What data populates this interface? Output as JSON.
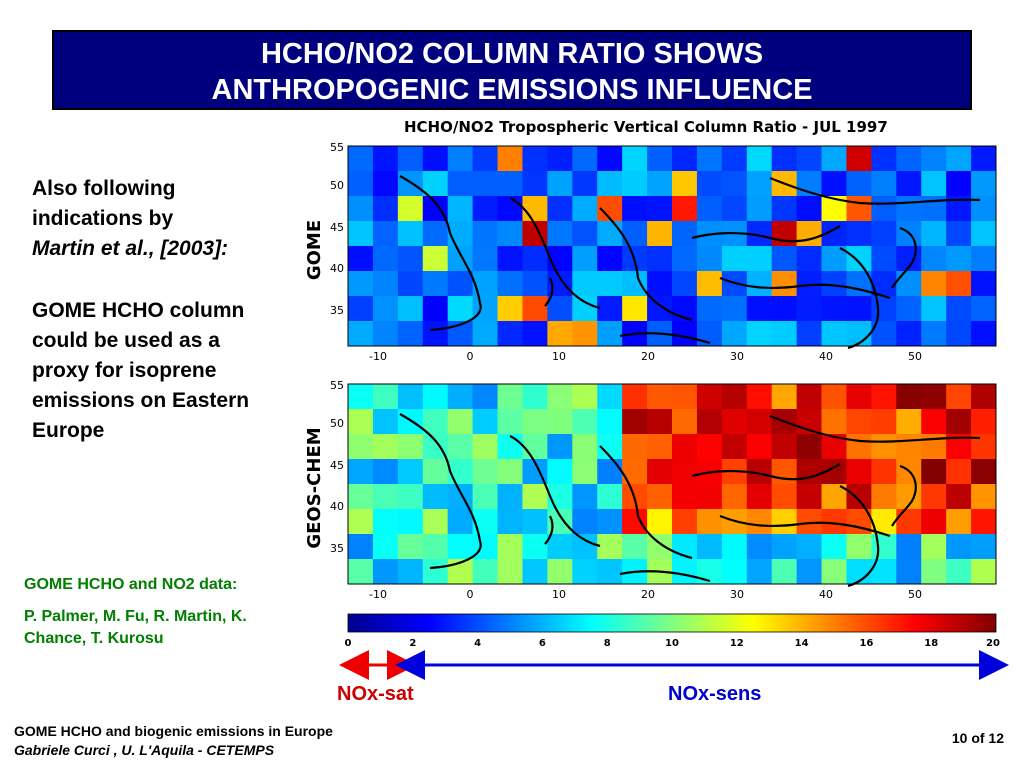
{
  "slide": {
    "title_line1": "HCHO/NO2 COLUMN RATIO SHOWS",
    "title_line2": "ANTHROPOGENIC EMISSIONS INFLUENCE"
  },
  "left_text": {
    "intro_line1": "Also following",
    "intro_line2": "indications by",
    "intro_citation": "Martin et al., [2003]:",
    "proxy_line1": "GOME HCHO column",
    "proxy_line2": "could be used as a",
    "proxy_line3": "proxy for isoprene",
    "proxy_line4": "emissions on Eastern",
    "proxy_line5": "Europe"
  },
  "credits": {
    "heading": "GOME HCHO and NO2 data:",
    "authors_line1": "P. Palmer, M. Fu, R. Martin, K.",
    "authors_line2": "Chance, T. Kurosu"
  },
  "figure": {
    "title": "HCHO/NO2 Tropospheric Vertical Column Ratio -  JUL 1997",
    "panel_top_label": "GOME",
    "panel_bottom_label": "GEOS-CHEM",
    "lat_ticks": [
      "55",
      "50",
      "45",
      "40",
      "35"
    ],
    "lon_ticks": [
      "-10",
      "0",
      "10",
      "20",
      "30",
      "40",
      "50"
    ],
    "colorbar_ticks": [
      "0",
      "2",
      "4",
      "6",
      "8",
      "10",
      "12",
      "14",
      "16",
      "18",
      "20"
    ],
    "colors": {
      "low": "#00008f",
      "mid_low": "#0080ff",
      "mid": "#40ffbf",
      "mid_high": "#ffbf00",
      "high": "#800000"
    }
  },
  "regimes": {
    "nox_sat": "NOx-sat",
    "nox_sens": "NOx-sens",
    "nox_sat_color": "#ee0000",
    "nox_sens_color": "#0000dd"
  },
  "footer": {
    "line1": "GOME HCHO and biogenic emissions in Europe",
    "line2": "Gabriele Curci , U. L'Aquila - CETEMPS",
    "page": "10 of 12"
  }
}
